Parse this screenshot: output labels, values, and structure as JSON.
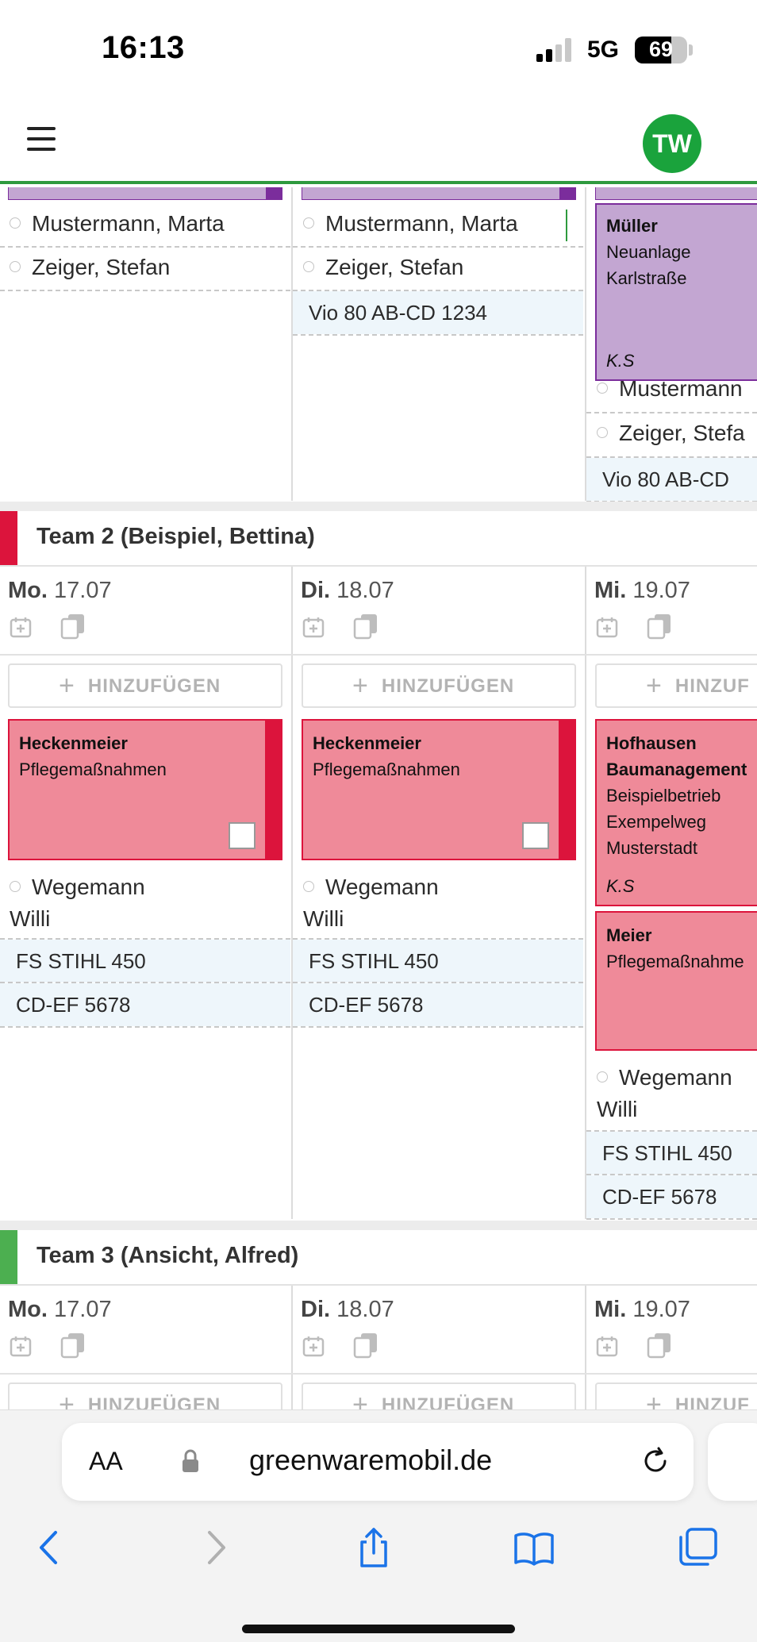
{
  "status_bar": {
    "time": "16:13",
    "network": "5G",
    "battery": "69",
    "battery_level": 0.69
  },
  "header": {
    "avatar_initials": "TW"
  },
  "top_section": {
    "columns": [
      {
        "persons": [
          "Mustermann, Marta",
          "Zeiger, Stefan"
        ],
        "resources": []
      },
      {
        "persons": [
          "Mustermann, Marta",
          "Zeiger, Stefan"
        ],
        "resources": [
          "Vio 80 AB-CD 1234"
        ]
      },
      {
        "card": {
          "title": "Müller",
          "lines": [
            "Neuanlage",
            "Karlstraße"
          ],
          "initials": "K.S"
        },
        "persons": [
          "Mustermann",
          "Zeiger, Stefa"
        ],
        "resources": [
          "Vio 80 AB-CD"
        ]
      }
    ]
  },
  "teams": [
    {
      "name": "Team 2 (Beispiel, Bettina)",
      "color": "#dc143c",
      "days": [
        {
          "weekday": "Mo.",
          "date": "17.07",
          "add_label": "HINZUFÜGEN",
          "cards": [
            {
              "title": "Heckenmeier",
              "lines": [
                "Pflegemaßnahmen"
              ]
            }
          ],
          "person": {
            "first": "Wegemann",
            "second": "Willi"
          },
          "resources": [
            "FS STIHL 450",
            "CD-EF 5678"
          ]
        },
        {
          "weekday": "Di.",
          "date": "18.07",
          "add_label": "HINZUFÜGEN",
          "cards": [
            {
              "title": "Heckenmeier",
              "lines": [
                "Pflegemaßnahmen"
              ]
            }
          ],
          "person": {
            "first": "Wegemann",
            "second": "Willi"
          },
          "resources": [
            "FS STIHL 450",
            "CD-EF 5678"
          ]
        },
        {
          "weekday": "Mi.",
          "date": "19.07",
          "add_label": "HINZUF",
          "cards": [
            {
              "title": "Hofhausen",
              "title2": "Baumanagement",
              "lines": [
                "Beispielbetrieb",
                "Exempelweg",
                "Musterstadt"
              ],
              "initials": "K.S"
            },
            {
              "title": "Meier",
              "lines": [
                "Pflegemaßnahme"
              ]
            }
          ],
          "person": {
            "first": "Wegemann",
            "second": "Willi"
          },
          "resources": [
            "FS STIHL 450",
            "CD-EF 5678"
          ]
        }
      ]
    },
    {
      "name": "Team 3 (Ansicht, Alfred)",
      "color": "#4caf50",
      "days": [
        {
          "weekday": "Mo.",
          "date": "17.07",
          "add_label": "HINZUFÜGEN"
        },
        {
          "weekday": "Di.",
          "date": "18.07",
          "add_label": "HINZUFÜGEN"
        },
        {
          "weekday": "Mi.",
          "date": "19.07",
          "add_label": "HINZUF"
        }
      ]
    }
  ],
  "colors": {
    "accent_green": "#2e9a3e",
    "card_purple": "#c3a6d2",
    "card_purple_border": "#7b2d9c",
    "card_pink": "#ef8a99",
    "card_pink_stripe": "#dc143c"
  },
  "browser": {
    "text_size_label": "AA",
    "url": "greenwaremobil.de"
  }
}
